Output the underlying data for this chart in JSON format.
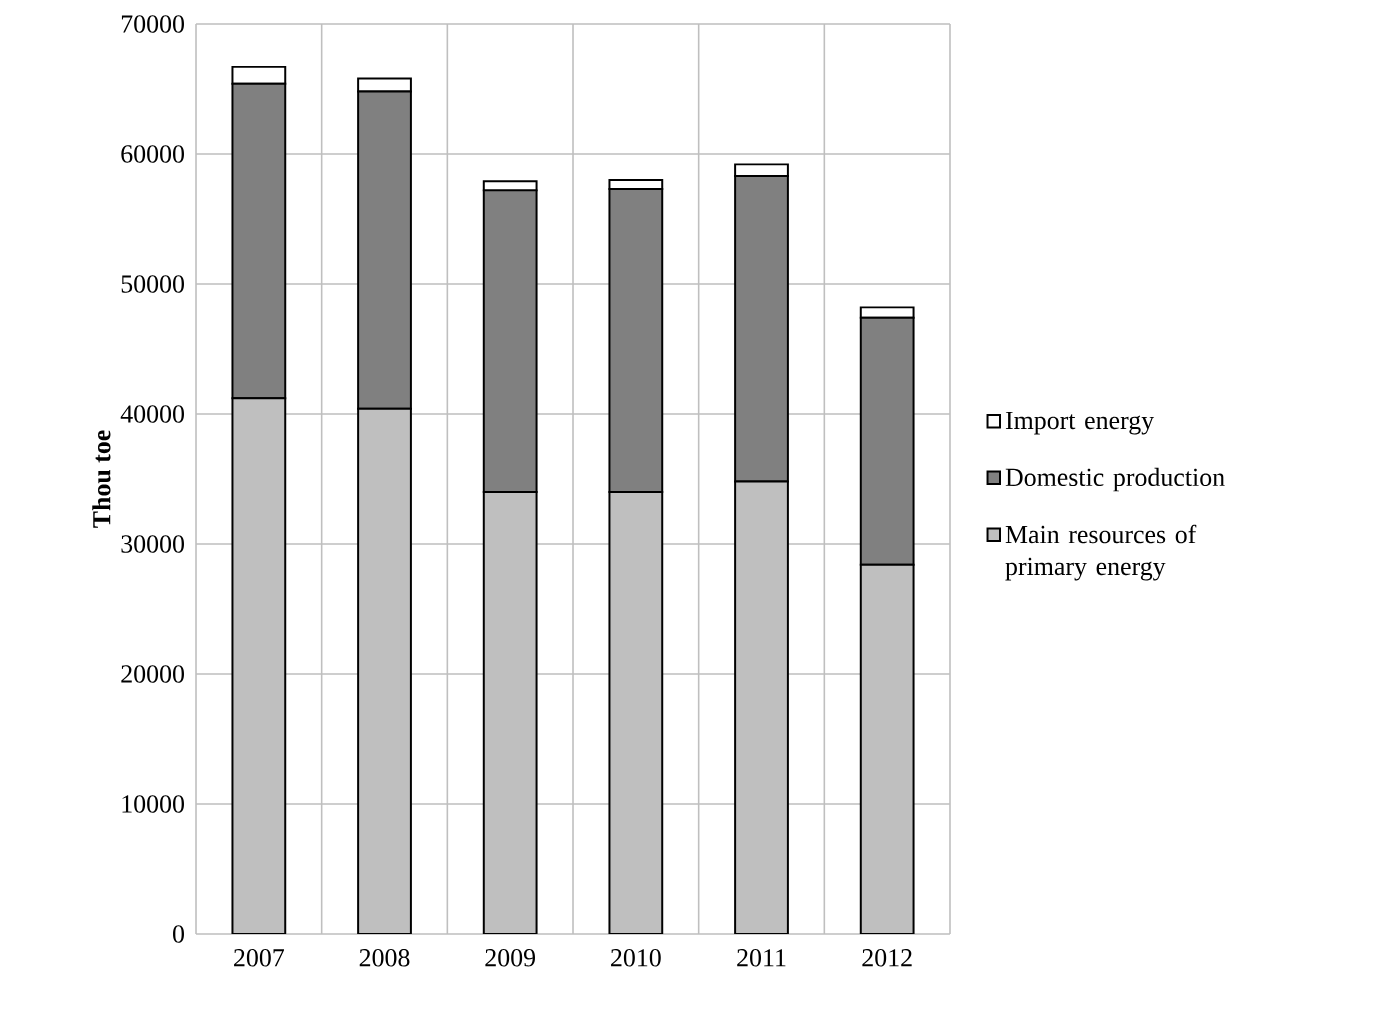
{
  "chart_data": {
    "type": "bar",
    "stacked": true,
    "ylabel": "Thou toe",
    "categories": [
      "2007",
      "2008",
      "2009",
      "2010",
      "2011",
      "2012"
    ],
    "series": [
      {
        "name": "Main resources of primary energy",
        "color": "#bfbfbf",
        "values": [
          41200,
          40400,
          34000,
          34000,
          34800,
          28400
        ]
      },
      {
        "name": "Domestic production",
        "color": "#808080",
        "values": [
          24200,
          24400,
          23200,
          23300,
          23500,
          19000
        ]
      },
      {
        "name": "Import energy",
        "color": "#ffffff",
        "values": [
          1300,
          1000,
          700,
          700,
          900,
          800
        ]
      }
    ],
    "ylim": [
      0,
      70000
    ],
    "yticks": [
      0,
      10000,
      20000,
      30000,
      40000,
      50000,
      60000,
      70000
    ],
    "grid": true,
    "legend": "right"
  }
}
